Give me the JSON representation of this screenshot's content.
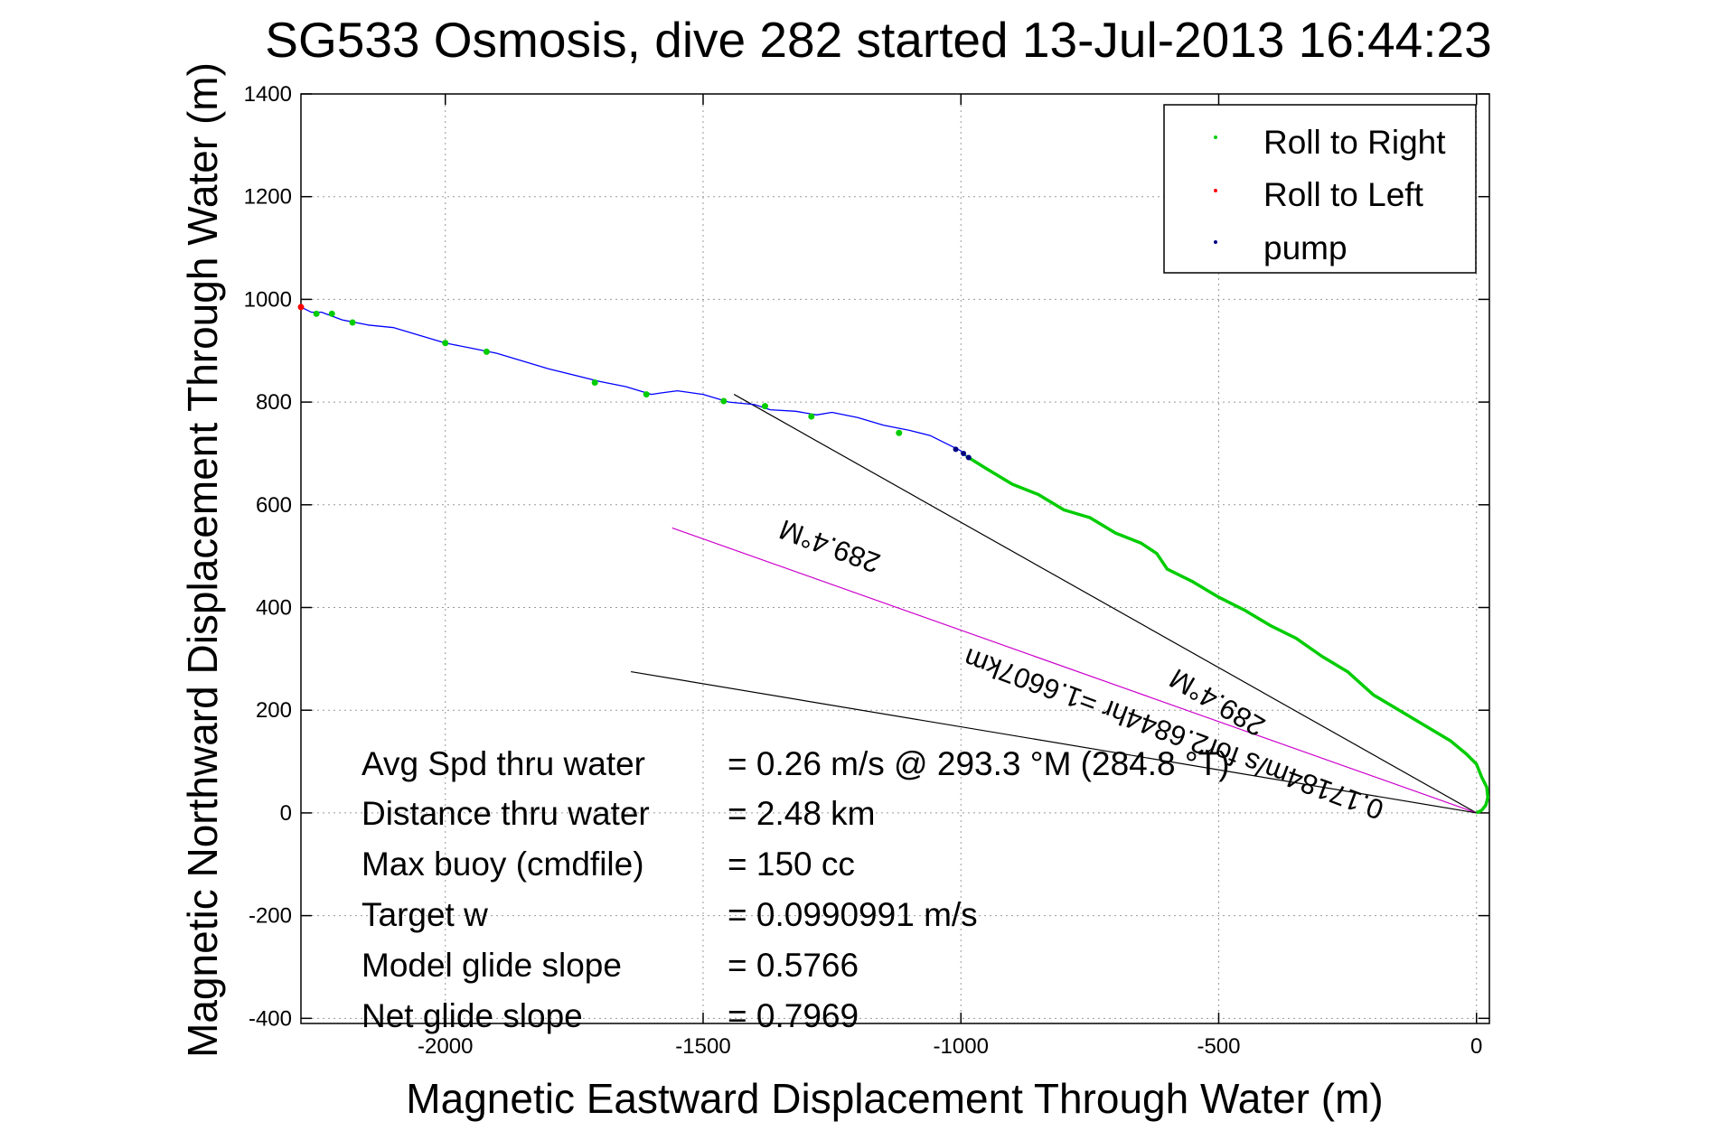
{
  "chart_data": {
    "type": "line",
    "title": "SG533 Osmosis, dive 282 started 13-Jul-2013 16:44:23",
    "xlabel": "Magnetic Eastward Displacement Through Water (m)",
    "ylabel": "Magnetic Northward Displacement Through Water (m)",
    "xlim": [
      -2280,
      25
    ],
    "ylim": [
      -410,
      1400
    ],
    "grid": true,
    "x_ticks": [
      -2000,
      -1500,
      -1000,
      -500,
      0
    ],
    "y_ticks": [
      -400,
      -200,
      0,
      200,
      400,
      600,
      800,
      1000,
      1200,
      1400
    ],
    "legend": {
      "placement": "top-right",
      "entries": [
        {
          "label": "Roll to Right",
          "color": "#00cc00"
        },
        {
          "label": "Roll to Left",
          "color": "#ff0000"
        },
        {
          "label": "pump",
          "color": "#000080"
        }
      ]
    },
    "series": [
      {
        "color": "#0000ff",
        "x": [
          -2280,
          -2260,
          -2240,
          -2200,
          -2150,
          -2100,
          -2000,
          -1950,
          -1900,
          -1800,
          -1700,
          -1650,
          -1600,
          -1580,
          -1550,
          -1500,
          -1450,
          -1400,
          -1370,
          -1320,
          -1280,
          -1250,
          -1200,
          -1150,
          -1100,
          -1060,
          -1030,
          -1000,
          -990
        ],
        "y": [
          985,
          975,
          975,
          960,
          950,
          945,
          915,
          905,
          895,
          865,
          840,
          830,
          815,
          818,
          822,
          815,
          800,
          795,
          785,
          782,
          775,
          780,
          770,
          755,
          745,
          735,
          720,
          705,
          695
        ]
      },
      {
        "color": "#00cc00",
        "x": [
          -990,
          -950,
          -900,
          -850,
          -800,
          -750,
          -700,
          -650,
          -620,
          -600,
          -550,
          -500,
          -450,
          -400,
          -350,
          -300,
          -250,
          -200,
          -150,
          -100,
          -50,
          -20,
          0,
          10,
          20,
          22,
          18,
          10,
          0
        ],
        "y": [
          695,
          670,
          640,
          620,
          590,
          575,
          545,
          525,
          505,
          475,
          450,
          420,
          395,
          365,
          340,
          305,
          275,
          230,
          200,
          170,
          140,
          115,
          95,
          70,
          50,
          30,
          15,
          5,
          0
        ]
      }
    ],
    "markers": {
      "roll_to_right": {
        "color": "#00cc00",
        "x": [
          -2250,
          -2220,
          -2180,
          -2000,
          -1920,
          -1710,
          -1610,
          -1460,
          -1380,
          -1290,
          -1120
        ],
        "y": [
          972,
          972,
          955,
          915,
          898,
          838,
          815,
          802,
          792,
          772,
          740
        ]
      },
      "roll_to_left": {
        "color": "#ff0000",
        "x": [
          -2280
        ],
        "y": [
          985
        ]
      },
      "pump": {
        "color": "#000080",
        "x": [
          -1010,
          -995,
          -985
        ],
        "y": [
          708,
          700,
          692
        ]
      }
    },
    "reference_lines": [
      {
        "color": "#000000",
        "x": [
          -1440,
          0
        ],
        "y": [
          815,
          0
        ]
      },
      {
        "color": "#cc00cc",
        "x": [
          -1560,
          0
        ],
        "y": [
          555,
          0
        ]
      },
      {
        "color": "#000000",
        "x": [
          -1640,
          0
        ],
        "y": [
          275,
          0
        ]
      }
    ],
    "annotations": {
      "line1": "289.4°M",
      "line2": "0.17184m/s for2.6844hr =1.6607km",
      "line3": "289.4°M"
    },
    "stats": [
      {
        "label": "Avg Spd thru water",
        "value": "=  0.26 m/s @ 293.3 °M (284.8 °T)"
      },
      {
        "label": "Distance thru water",
        "value": "=  2.48 km"
      },
      {
        "label": "Max buoy (cmdfile)",
        "value": "= 150 cc"
      },
      {
        "label": "Target w",
        "value": "= 0.0990991 m/s"
      },
      {
        "label": "Model glide slope",
        "value": "= 0.5766"
      },
      {
        "label": "Net glide slope",
        "value": "= 0.7969"
      }
    ]
  }
}
